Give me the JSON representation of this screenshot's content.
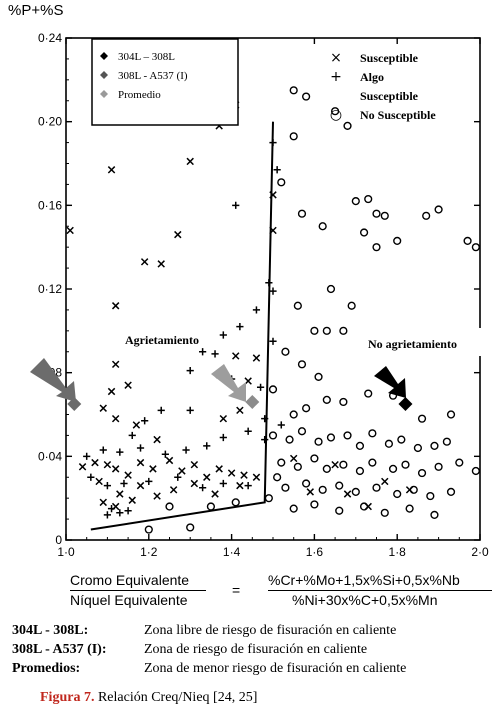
{
  "y_axis_symbol": "%P+%S",
  "chart_data": {
    "type": "scatter",
    "xlim": [
      1.0,
      2.0
    ],
    "ylim": [
      0,
      0.24
    ],
    "x_ticks": [
      "1·0",
      "1·2",
      "1·4",
      "1·6",
      "1·8",
      "2·0"
    ],
    "y_ticks": [
      "0",
      "0·04",
      "0·08",
      "0·12",
      "0·16",
      "0·20",
      "0·24"
    ],
    "legend_inner": [
      {
        "marker": "diamond-black",
        "label": "304L – 308L",
        "color": "#000000"
      },
      {
        "marker": "diamond-darkgray",
        "label": "308L - A537 (I)",
        "color": "#555555"
      },
      {
        "marker": "diamond-lightgray",
        "label": "Promedio",
        "color": "#9a9a9a"
      }
    ],
    "legend_outer": [
      {
        "symbol": "×",
        "label": "Susceptible"
      },
      {
        "symbol": "+",
        "label": "Algo"
      },
      {
        "symbol": "",
        "label": "Susceptible"
      },
      {
        "symbol": "○",
        "label": "No Susceptible"
      }
    ],
    "region_labels": [
      "Agrietamiento",
      "No agrietamiento"
    ],
    "highlight_points": [
      {
        "label": "304L – 308L",
        "x": 1.82,
        "y": 0.065,
        "color": "#000000"
      },
      {
        "label": "308L - A537 (I)",
        "x": 1.02,
        "y": 0.065,
        "color": "#6a6a6a"
      },
      {
        "label": "Promedio",
        "x": 1.45,
        "y": 0.066,
        "color": "#8c8c8c"
      }
    ],
    "boundary_line": [
      [
        1.06,
        0.005
      ],
      [
        1.48,
        0.018
      ],
      [
        1.5,
        0.2
      ]
    ],
    "series": [
      {
        "marker": "x",
        "points": [
          [
            1.01,
            0.148
          ],
          [
            1.11,
            0.177
          ],
          [
            1.19,
            0.133
          ],
          [
            1.23,
            0.132
          ],
          [
            1.27,
            0.146
          ],
          [
            1.3,
            0.181
          ],
          [
            1.37,
            0.198
          ],
          [
            1.41,
            0.208
          ],
          [
            1.12,
            0.112
          ],
          [
            1.12,
            0.084
          ],
          [
            1.41,
            0.088
          ],
          [
            1.37,
            0.079
          ],
          [
            1.46,
            0.087
          ],
          [
            1.44,
            0.076
          ],
          [
            1.11,
            0.071
          ],
          [
            1.15,
            0.074
          ],
          [
            1.09,
            0.063
          ],
          [
            1.12,
            0.058
          ],
          [
            1.17,
            0.055
          ],
          [
            1.22,
            0.048
          ],
          [
            1.38,
            0.058
          ],
          [
            1.42,
            0.062
          ],
          [
            1.04,
            0.035
          ],
          [
            1.07,
            0.037
          ],
          [
            1.1,
            0.036
          ],
          [
            1.12,
            0.034
          ],
          [
            1.15,
            0.031
          ],
          [
            1.18,
            0.037
          ],
          [
            1.21,
            0.034
          ],
          [
            1.25,
            0.038
          ],
          [
            1.28,
            0.033
          ],
          [
            1.31,
            0.036
          ],
          [
            1.34,
            0.03
          ],
          [
            1.37,
            0.034
          ],
          [
            1.4,
            0.032
          ],
          [
            1.43,
            0.031
          ],
          [
            1.46,
            0.03
          ],
          [
            1.08,
            0.028
          ],
          [
            1.13,
            0.022
          ],
          [
            1.18,
            0.026
          ],
          [
            1.22,
            0.021
          ],
          [
            1.26,
            0.024
          ],
          [
            1.31,
            0.027
          ],
          [
            1.36,
            0.022
          ],
          [
            1.42,
            0.026
          ],
          [
            1.09,
            0.018
          ],
          [
            1.12,
            0.016
          ],
          [
            1.16,
            0.019
          ],
          [
            1.5,
            0.165
          ],
          [
            1.5,
            0.148
          ],
          [
            1.55,
            0.039
          ],
          [
            1.59,
            0.023
          ],
          [
            1.65,
            0.036
          ],
          [
            1.68,
            0.022
          ],
          [
            1.73,
            0.016
          ],
          [
            1.77,
            0.028
          ],
          [
            1.83,
            0.024
          ]
        ]
      },
      {
        "marker": "+",
        "points": [
          [
            1.41,
            0.16
          ],
          [
            1.49,
            0.123
          ],
          [
            1.5,
            0.119
          ],
          [
            1.51,
            0.177
          ],
          [
            1.5,
            0.19
          ],
          [
            1.38,
            0.098
          ],
          [
            1.42,
            0.102
          ],
          [
            1.46,
            0.11
          ],
          [
            1.33,
            0.09
          ],
          [
            1.3,
            0.081
          ],
          [
            1.36,
            0.089
          ],
          [
            1.4,
            0.077
          ],
          [
            1.47,
            0.073
          ],
          [
            1.5,
            0.095
          ],
          [
            1.3,
            0.062
          ],
          [
            1.23,
            0.062
          ],
          [
            1.19,
            0.057
          ],
          [
            1.16,
            0.05
          ],
          [
            1.05,
            0.04
          ],
          [
            1.09,
            0.043
          ],
          [
            1.13,
            0.042
          ],
          [
            1.18,
            0.044
          ],
          [
            1.24,
            0.041
          ],
          [
            1.29,
            0.043
          ],
          [
            1.34,
            0.045
          ],
          [
            1.38,
            0.049
          ],
          [
            1.44,
            0.052
          ],
          [
            1.48,
            0.048
          ],
          [
            1.06,
            0.03
          ],
          [
            1.1,
            0.026
          ],
          [
            1.14,
            0.027
          ],
          [
            1.2,
            0.028
          ],
          [
            1.27,
            0.03
          ],
          [
            1.33,
            0.025
          ],
          [
            1.38,
            0.027
          ],
          [
            1.44,
            0.026
          ],
          [
            1.11,
            0.015
          ],
          [
            1.13,
            0.013
          ],
          [
            1.15,
            0.014
          ],
          [
            1.48,
            0.058
          ],
          [
            1.52,
            0.055
          ],
          [
            1.1,
            0.012
          ]
        ]
      },
      {
        "marker": "o",
        "points": [
          [
            1.55,
            0.215
          ],
          [
            1.58,
            0.212
          ],
          [
            1.65,
            0.205
          ],
          [
            1.68,
            0.198
          ],
          [
            1.7,
            0.162
          ],
          [
            1.73,
            0.163
          ],
          [
            1.75,
            0.156
          ],
          [
            1.77,
            0.155
          ],
          [
            1.72,
            0.147
          ],
          [
            1.75,
            0.14
          ],
          [
            1.8,
            0.143
          ],
          [
            1.87,
            0.155
          ],
          [
            1.9,
            0.158
          ],
          [
            1.97,
            0.143
          ],
          [
            1.99,
            0.14
          ],
          [
            1.57,
            0.156
          ],
          [
            1.62,
            0.15
          ],
          [
            1.52,
            0.171
          ],
          [
            1.55,
            0.193
          ],
          [
            1.64,
            0.12
          ],
          [
            1.56,
            0.112
          ],
          [
            1.69,
            0.112
          ],
          [
            1.6,
            0.1
          ],
          [
            1.63,
            0.1
          ],
          [
            1.67,
            0.1
          ],
          [
            1.53,
            0.09
          ],
          [
            1.57,
            0.084
          ],
          [
            1.61,
            0.078
          ],
          [
            1.5,
            0.072
          ],
          [
            1.55,
            0.06
          ],
          [
            1.58,
            0.063
          ],
          [
            1.63,
            0.067
          ],
          [
            1.67,
            0.066
          ],
          [
            1.73,
            0.07
          ],
          [
            1.79,
            0.069
          ],
          [
            1.86,
            0.058
          ],
          [
            1.93,
            0.06
          ],
          [
            1.5,
            0.05
          ],
          [
            1.54,
            0.048
          ],
          [
            1.57,
            0.052
          ],
          [
            1.61,
            0.047
          ],
          [
            1.64,
            0.049
          ],
          [
            1.68,
            0.05
          ],
          [
            1.71,
            0.045
          ],
          [
            1.74,
            0.051
          ],
          [
            1.78,
            0.046
          ],
          [
            1.81,
            0.048
          ],
          [
            1.85,
            0.044
          ],
          [
            1.89,
            0.045
          ],
          [
            1.92,
            0.047
          ],
          [
            1.52,
            0.037
          ],
          [
            1.56,
            0.035
          ],
          [
            1.6,
            0.039
          ],
          [
            1.63,
            0.034
          ],
          [
            1.67,
            0.036
          ],
          [
            1.71,
            0.033
          ],
          [
            1.74,
            0.037
          ],
          [
            1.79,
            0.034
          ],
          [
            1.82,
            0.036
          ],
          [
            1.86,
            0.032
          ],
          [
            1.9,
            0.035
          ],
          [
            1.95,
            0.037
          ],
          [
            1.99,
            0.033
          ],
          [
            1.53,
            0.025
          ],
          [
            1.58,
            0.027
          ],
          [
            1.62,
            0.024
          ],
          [
            1.66,
            0.026
          ],
          [
            1.7,
            0.023
          ],
          [
            1.75,
            0.025
          ],
          [
            1.8,
            0.022
          ],
          [
            1.84,
            0.024
          ],
          [
            1.88,
            0.021
          ],
          [
            1.93,
            0.023
          ],
          [
            1.55,
            0.015
          ],
          [
            1.6,
            0.017
          ],
          [
            1.66,
            0.014
          ],
          [
            1.72,
            0.016
          ],
          [
            1.77,
            0.013
          ],
          [
            1.83,
            0.015
          ],
          [
            1.89,
            0.012
          ],
          [
            1.49,
            0.02
          ],
          [
            1.51,
            0.03
          ],
          [
            1.41,
            0.018
          ],
          [
            1.35,
            0.016
          ],
          [
            1.3,
            0.006
          ],
          [
            1.2,
            0.005
          ],
          [
            1.25,
            0.016
          ]
        ]
      }
    ]
  },
  "formula": {
    "lhs_numerator": "Cromo Equivalente",
    "lhs_denominator": "Níquel Equivalente",
    "equals": "=",
    "rhs_numerator": "%Cr+%Mo+1,5x%Si+0,5x%Nb",
    "rhs_denominator": "%Ni+30x%C+0,5x%Mn"
  },
  "notes": [
    {
      "key": "304L - 308L:",
      "value": "Zona libre de riesgo de fisuración en caliente"
    },
    {
      "key": "308L - A537 (I):",
      "value": "Zona de riesgo de fisuración en caliente"
    },
    {
      "key": "Promedios:",
      "value": "Zona de menor riesgo de fisuración en caliente"
    }
  ],
  "caption": {
    "figure_label": "Figura 7.",
    "text": " Relación Creq/Nieq [24, 25]"
  }
}
